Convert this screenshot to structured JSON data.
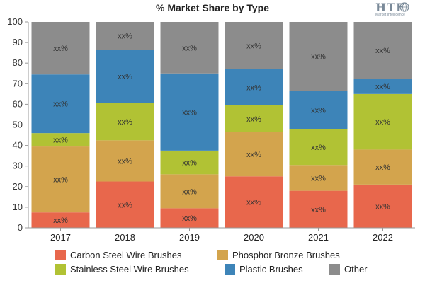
{
  "title": "% Market Share by Type",
  "logo": {
    "main": "HTF",
    "sub": "Market Intelligence"
  },
  "chart_data": {
    "type": "bar",
    "stacked": true,
    "title": "% Market Share by Type",
    "xlabel": "",
    "ylabel": "",
    "ylim": [
      0,
      100
    ],
    "yticks": [
      0,
      10,
      20,
      30,
      40,
      50,
      60,
      70,
      80,
      90,
      100
    ],
    "grid": false,
    "legend_position": "bottom",
    "categories": [
      "2017",
      "2018",
      "2019",
      "2020",
      "2021",
      "2022"
    ],
    "data_label": "xx%",
    "series": [
      {
        "name": "Carbon Steel Wire Brushes",
        "color": "#e8674c",
        "values": [
          7.5,
          22.5,
          9.5,
          25,
          18,
          21
        ]
      },
      {
        "name": "Phosphor Bronze Brushes",
        "color": "#d3a44d",
        "values": [
          32,
          20,
          16.5,
          21.5,
          12.5,
          17
        ]
      },
      {
        "name": "Stainless Steel Wire Brushes",
        "color": "#b1c234",
        "values": [
          6.5,
          18,
          11.5,
          13,
          17.5,
          27
        ]
      },
      {
        "name": "Plastic Brushes",
        "color": "#3d84b8",
        "values": [
          28.5,
          26,
          37.5,
          17.5,
          18.5,
          7.5
        ]
      },
      {
        "name": "Other",
        "color": "#8c8c8c",
        "values": [
          25.5,
          13.5,
          25,
          23,
          33.5,
          27.5
        ]
      }
    ]
  }
}
